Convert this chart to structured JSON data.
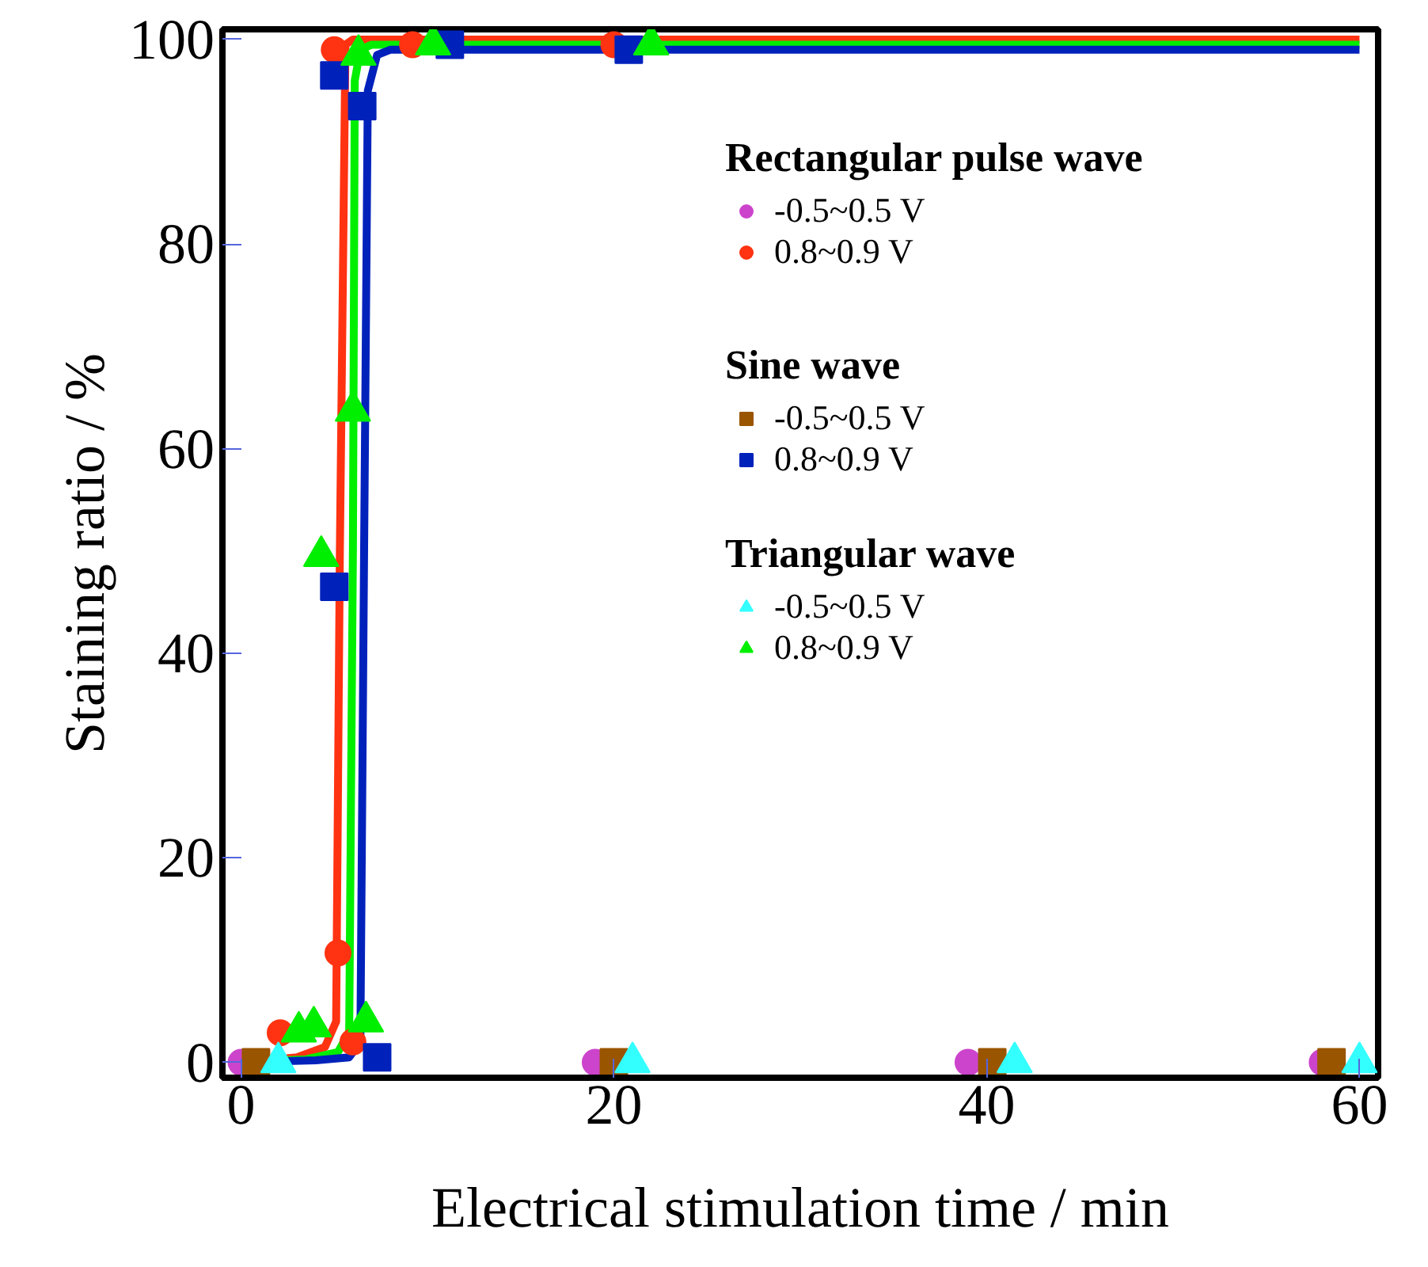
{
  "chart_data": {
    "type": "scatter",
    "xlabel": "Electrical stimulation time / min",
    "ylabel": "Staining ratio / %",
    "legend_title": [
      "Rectangular pulse wave",
      "Sine wave",
      "Triangular wave"
    ],
    "xlim": [
      -1,
      61
    ],
    "ylim": [
      -1.5,
      101
    ],
    "xticks": [
      0,
      20,
      40,
      60
    ],
    "yticks": [
      0,
      20,
      40,
      60,
      80,
      100
    ],
    "grid": false,
    "legend": "top right",
    "series": [
      {
        "name": "-0.5~0.5 V",
        "color": "#cc44cc",
        "marker": "circle",
        "x": [
          0,
          19,
          39,
          58
        ],
        "values": [
          0,
          0,
          0,
          0
        ]
      },
      {
        "name": "0.8~0.9 V",
        "color": "#ff3311",
        "marker": "circle",
        "x": [
          2.1,
          5.2,
          6,
          5,
          9.2,
          20
        ],
        "values": [
          2.9,
          10.7,
          2,
          99,
          99.5,
          99.5
        ]
      },
      {
        "name": "-0.5~0.5 V",
        "color": "#9a5500",
        "marker": "square",
        "x": [
          0.8,
          20,
          40.3,
          58.5
        ],
        "values": [
          0,
          0,
          0,
          0
        ]
      },
      {
        "name": "0.8~0.9 V",
        "color": "#0022bb",
        "marker": "square",
        "x": [
          7.3,
          5,
          5,
          6.5,
          11.2,
          20.8
        ],
        "values": [
          0.5,
          46.5,
          96.5,
          93.5,
          99.5,
          99
        ]
      },
      {
        "name": "-0.5~0.5 V",
        "color": "#33ffff",
        "marker": "triangle",
        "x": [
          2,
          21,
          41.5,
          60
        ],
        "values": [
          0,
          0,
          0,
          0
        ]
      },
      {
        "name": "0.8~0.9 V",
        "color": "#00ee00",
        "marker": "triangle",
        "x": [
          3.1,
          3.9,
          6.7,
          4.3,
          6,
          6.3,
          10.3,
          22
        ],
        "values": [
          3,
          3.5,
          4,
          49.5,
          63.7,
          98.5,
          99.5,
          99.5
        ]
      },
      {
        "type": "line",
        "color": "#ff3311",
        "marker": "none",
        "x": [
          0,
          3,
          4.5,
          5.1,
          5.3,
          5.6,
          6,
          60
        ],
        "values": [
          0,
          0.5,
          1.5,
          4,
          50,
          99.5,
          100,
          100
        ]
      },
      {
        "type": "line",
        "color": "#00ee00",
        "marker": "none",
        "x": [
          0,
          3.5,
          5.2,
          5.8,
          6,
          6.1,
          6.4,
          7,
          60
        ],
        "values": [
          0,
          0.3,
          1,
          3,
          50,
          96,
          99,
          99.5,
          99.5
        ]
      },
      {
        "type": "line",
        "color": "#0022bb",
        "marker": "none",
        "x": [
          0,
          4,
          5.8,
          6.4,
          6.6,
          6.8,
          7.3,
          8,
          60
        ],
        "values": [
          0,
          0.2,
          0.5,
          2,
          50,
          95,
          98.5,
          99,
          99
        ]
      }
    ]
  }
}
